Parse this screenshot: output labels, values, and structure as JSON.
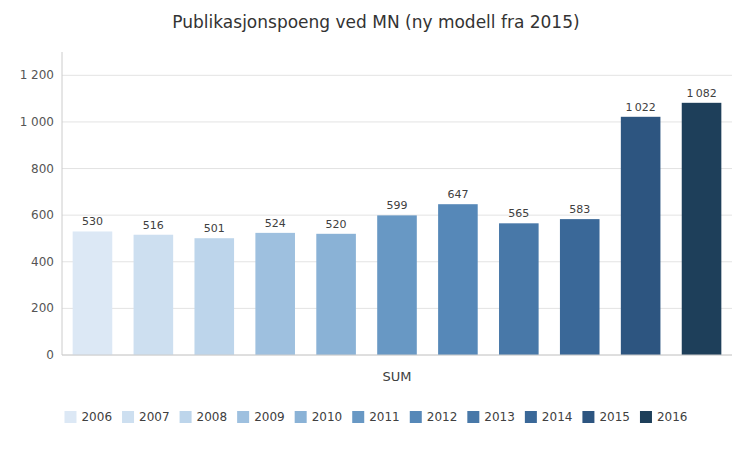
{
  "chart_data": {
    "type": "bar",
    "title": "Publikasjonspoeng ved MN (ny modell fra 2015)",
    "x_label": "SUM",
    "categories": [
      "2006",
      "2007",
      "2008",
      "2009",
      "2010",
      "2011",
      "2012",
      "2013",
      "2014",
      "2015",
      "2016"
    ],
    "values": [
      530,
      516,
      501,
      524,
      520,
      599,
      647,
      565,
      583,
      1022,
      1082
    ],
    "value_labels": [
      "530",
      "516",
      "501",
      "524",
      "520",
      "599",
      "647",
      "565",
      "583",
      "1 022",
      "1 082"
    ],
    "colors": [
      "#dce8f5",
      "#cddff0",
      "#bdd5eb",
      "#9ec0df",
      "#8ab2d6",
      "#6898c4",
      "#5688b8",
      "#4878a8",
      "#3a6898",
      "#2d5580",
      "#1e3f5a"
    ],
    "ylim": [
      0,
      1300
    ],
    "yticks": [
      0,
      200,
      400,
      600,
      800,
      {
        "value": 1000,
        "label": "1 000"
      },
      {
        "value": 1200,
        "label": "1 200"
      }
    ],
    "grid": true,
    "data_labels": true,
    "legend": "bottom",
    "tick_labels": "y"
  }
}
